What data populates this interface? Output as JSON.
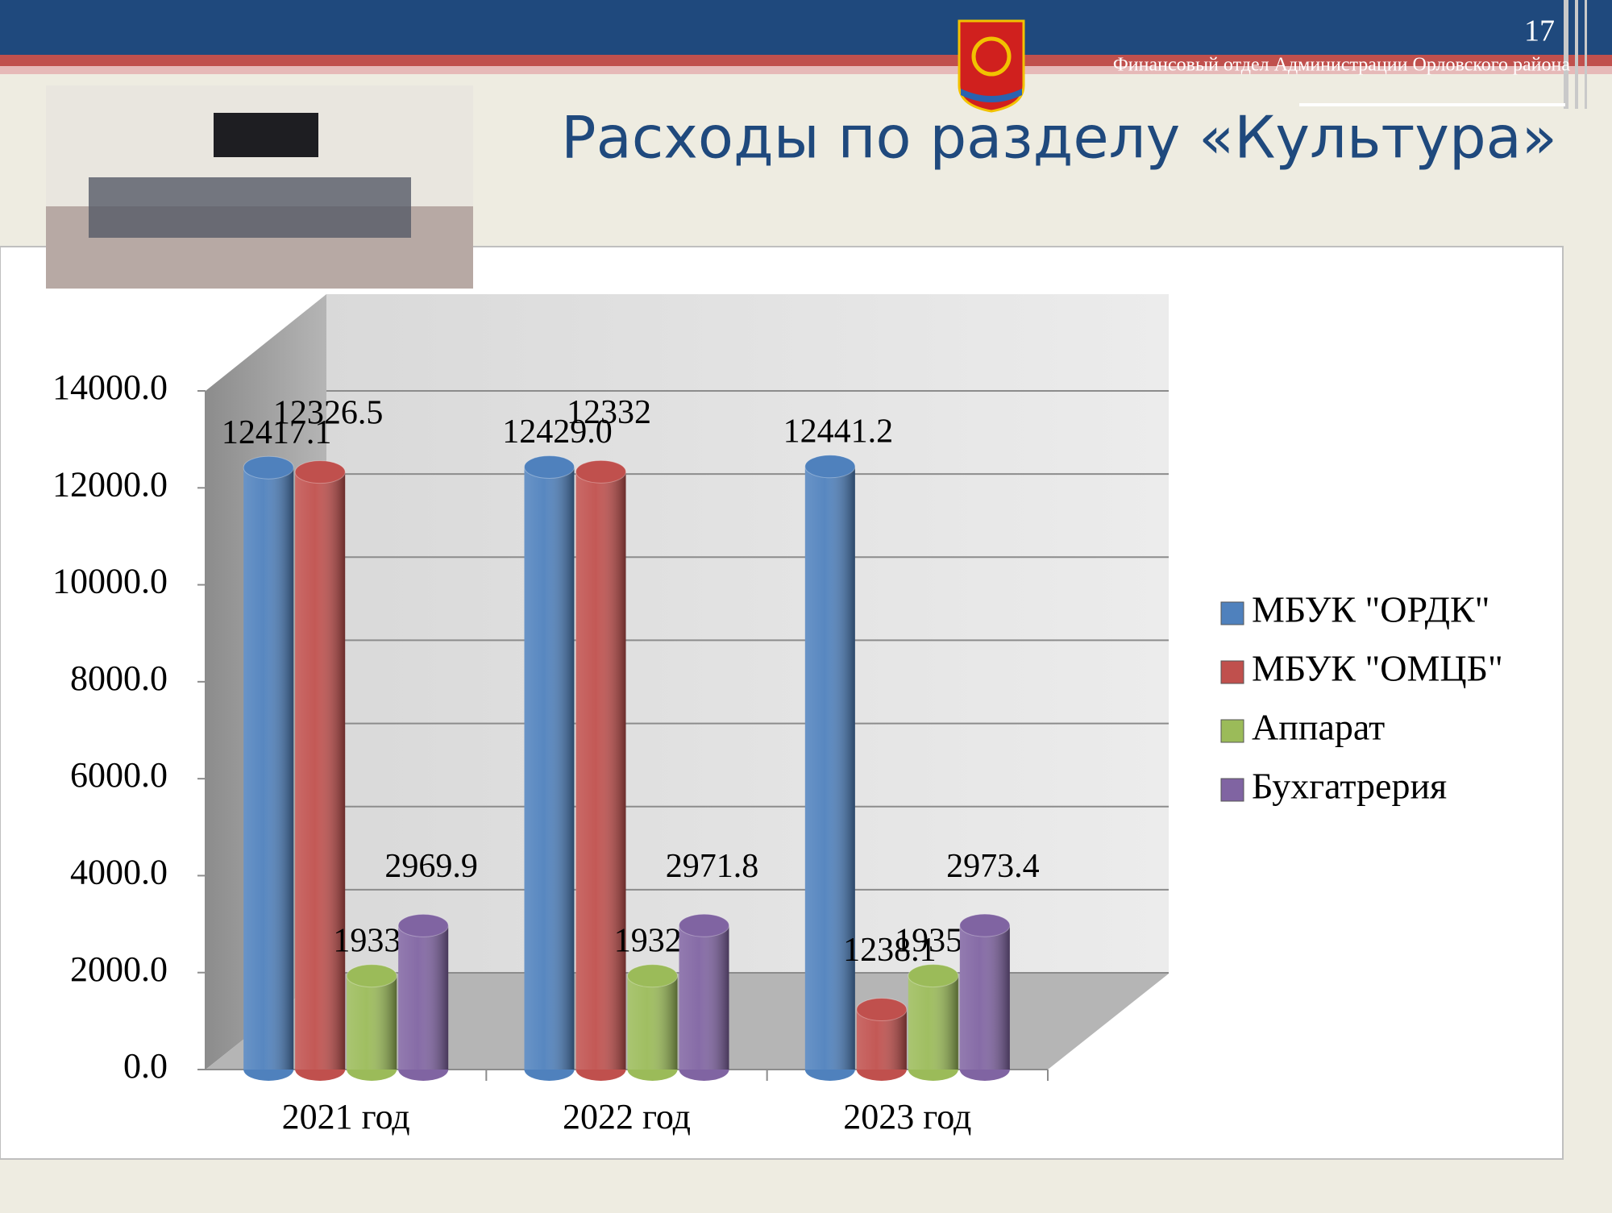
{
  "page_number": "17",
  "organization": "Финансовый отдел Администрации Орловского района",
  "chart_data": {
    "type": "bar",
    "title": "Расходы по разделу «Культура»",
    "categories": [
      "2021 год",
      "2022 год",
      "2023 год"
    ],
    "series": [
      {
        "name": "МБУК \"ОРДК\"",
        "color": "#4f81bd",
        "values": [
          12417.1,
          12429.0,
          12441.2
        ],
        "value_labels": [
          "12417.1",
          "12429.0",
          "12441.2"
        ]
      },
      {
        "name": "МБУК \"ОМЦБ\"",
        "color": "#c0504d",
        "values": [
          12326.5,
          12332,
          1238.1
        ],
        "value_labels": [
          "12326.5",
          "12332",
          "1238.1"
        ]
      },
      {
        "name": "Аппарат",
        "color": "#9bbb59",
        "values": [
          1933.1,
          1932.1,
          1935.2
        ],
        "value_labels": [
          "1933.1",
          "1932.1",
          "1935.2"
        ]
      },
      {
        "name": "Бухгатрерия",
        "color": "#8064a2",
        "values": [
          2969.9,
          2971.8,
          2973.4
        ],
        "value_labels": [
          "2969.9",
          "2971.8",
          "2973.4"
        ]
      }
    ],
    "ylim": [
      0,
      14000
    ],
    "yticks": [
      {
        "value": 0,
        "label": "0.0"
      },
      {
        "value": 2000,
        "label": "2000.0"
      },
      {
        "value": 4000,
        "label": "4000.0"
      },
      {
        "value": 6000,
        "label": "6000.0"
      },
      {
        "value": 8000,
        "label": "8000.0"
      },
      {
        "value": 10000,
        "label": "10000.0"
      },
      {
        "value": 12000,
        "label": "12000.0"
      },
      {
        "value": 14000,
        "label": "14000.0"
      }
    ],
    "grid": true,
    "legend": "right"
  }
}
